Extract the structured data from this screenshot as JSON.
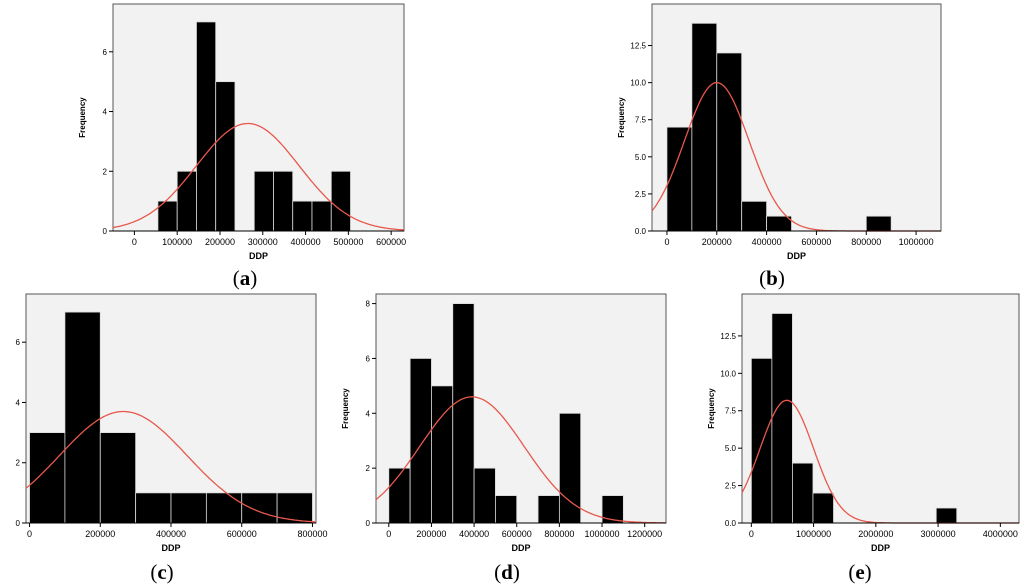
{
  "figure": {
    "panels": [
      {
        "label_open": "(",
        "label_letter": "a",
        "label_close": ")"
      },
      {
        "label_open": "(",
        "label_letter": "b",
        "label_close": ")"
      },
      {
        "label_open": "(",
        "label_letter": "c",
        "label_close": ")"
      },
      {
        "label_open": "(",
        "label_letter": "d",
        "label_close": ")"
      },
      {
        "label_open": "(",
        "label_letter": "e",
        "label_close": ")"
      }
    ]
  },
  "colors": {
    "background": "#f2f2f2",
    "bar_fill": "#000000",
    "bar_edge": "#dcdcdc",
    "curve": "#e8584c",
    "axis": "#000000"
  },
  "chart_data": [
    {
      "type": "bar",
      "xlabel": "DDP",
      "ylabel": "Frequency",
      "xlim": [
        -50000,
        630000
      ],
      "ylim": [
        0,
        7.6
      ],
      "xticks": [
        0,
        100000,
        200000,
        300000,
        400000,
        500000,
        600000
      ],
      "xtick_labels": [
        "0",
        "100000",
        "200000",
        "300000",
        "400000",
        "500000",
        "600000"
      ],
      "yticks": [
        0,
        2,
        4,
        6
      ],
      "ytick_labels": [
        "0",
        "2",
        "4",
        "6"
      ],
      "bin_width": 45000,
      "bins": [
        [
          55000,
          1
        ],
        [
          100000,
          2
        ],
        [
          145000,
          7
        ],
        [
          190000,
          5
        ],
        [
          235000,
          0
        ],
        [
          280000,
          2
        ],
        [
          325000,
          2
        ],
        [
          370000,
          1
        ],
        [
          415000,
          1
        ],
        [
          460000,
          2
        ]
      ],
      "normal_curve": {
        "mean": 265000,
        "sd": 120000,
        "peak": 3.6
      }
    },
    {
      "type": "bar",
      "xlabel": "DDP",
      "ylabel": "Frequency",
      "xlim": [
        -60000,
        1100000
      ],
      "ylim": [
        0,
        15.3
      ],
      "xticks": [
        0,
        200000,
        400000,
        600000,
        800000,
        1000000
      ],
      "xtick_labels": [
        "0",
        "200000",
        "400000",
        "600000",
        "800000",
        "1000000"
      ],
      "yticks": [
        0,
        2.5,
        5,
        7.5,
        10,
        12.5
      ],
      "ytick_labels": [
        "0.0",
        "2.5",
        "5.0",
        "7.5",
        "10.0",
        "12.5"
      ],
      "bin_width": 100000,
      "bins": [
        [
          0,
          7
        ],
        [
          100000,
          14
        ],
        [
          200000,
          12
        ],
        [
          300000,
          2
        ],
        [
          400000,
          1
        ],
        [
          500000,
          0
        ],
        [
          600000,
          0
        ],
        [
          700000,
          0
        ],
        [
          800000,
          1
        ]
      ],
      "normal_curve": {
        "mean": 200000,
        "sd": 130000,
        "peak": 10.0
      }
    },
    {
      "type": "bar",
      "xlabel": "DDP",
      "ylabel": "Frequency",
      "xlim": [
        -10000,
        810000
      ],
      "ylim": [
        0,
        7.6
      ],
      "xticks": [
        0,
        200000,
        400000,
        600000,
        800000
      ],
      "xtick_labels": [
        "0",
        "200000",
        "400000",
        "600000",
        "800000"
      ],
      "yticks": [
        0,
        2,
        4,
        6
      ],
      "ytick_labels": [
        "0",
        "2",
        "4",
        "6"
      ],
      "bin_width": 100000,
      "bins": [
        [
          0,
          3
        ],
        [
          100000,
          7
        ],
        [
          200000,
          3
        ],
        [
          300000,
          1
        ],
        [
          400000,
          1
        ],
        [
          500000,
          1
        ],
        [
          600000,
          1
        ],
        [
          700000,
          1
        ]
      ],
      "normal_curve": {
        "mean": 265000,
        "sd": 180000,
        "peak": 3.7
      }
    },
    {
      "type": "bar",
      "xlabel": "DDP",
      "ylabel": "Frequency",
      "xlim": [
        -60000,
        1300000
      ],
      "ylim": [
        0,
        8.35
      ],
      "xticks": [
        0,
        200000,
        400000,
        600000,
        800000,
        1000000,
        1200000
      ],
      "xtick_labels": [
        "0",
        "200000",
        "400000",
        "600000",
        "800000",
        "1000000",
        "1200000"
      ],
      "yticks": [
        0,
        2,
        4,
        6,
        8
      ],
      "ytick_labels": [
        "0",
        "2",
        "4",
        "6",
        "8"
      ],
      "bin_width": 100000,
      "bins": [
        [
          0,
          2
        ],
        [
          100000,
          6
        ],
        [
          200000,
          5
        ],
        [
          300000,
          8
        ],
        [
          400000,
          2
        ],
        [
          500000,
          1
        ],
        [
          600000,
          0
        ],
        [
          700000,
          1
        ],
        [
          800000,
          4
        ],
        [
          900000,
          0
        ],
        [
          1000000,
          1
        ]
      ],
      "normal_curve": {
        "mean": 390000,
        "sd": 245000,
        "peak": 4.6
      }
    },
    {
      "type": "bar",
      "xlabel": "DDP",
      "ylabel": "Frequency",
      "xlim": [
        -150000,
        4300000
      ],
      "ylim": [
        0,
        15.3
      ],
      "xticks": [
        0,
        1000000,
        2000000,
        3000000,
        4000000
      ],
      "xtick_labels": [
        "0",
        "1000000",
        "2000000",
        "3000000",
        "4000000"
      ],
      "yticks": [
        0,
        2.5,
        5,
        7.5,
        10,
        12.5
      ],
      "ytick_labels": [
        "0.0",
        "2.5",
        "5.0",
        "7.5",
        "10.0",
        "12.5"
      ],
      "bin_width": 330000,
      "bins": [
        [
          0,
          11
        ],
        [
          330000,
          14
        ],
        [
          660000,
          4
        ],
        [
          990000,
          2
        ],
        [
          1320000,
          0
        ],
        [
          1650000,
          0
        ],
        [
          1980000,
          0
        ],
        [
          2310000,
          0
        ],
        [
          2640000,
          0
        ],
        [
          2970000,
          1
        ]
      ],
      "normal_curve": {
        "mean": 570000,
        "sd": 430000,
        "peak": 8.2
      }
    }
  ]
}
